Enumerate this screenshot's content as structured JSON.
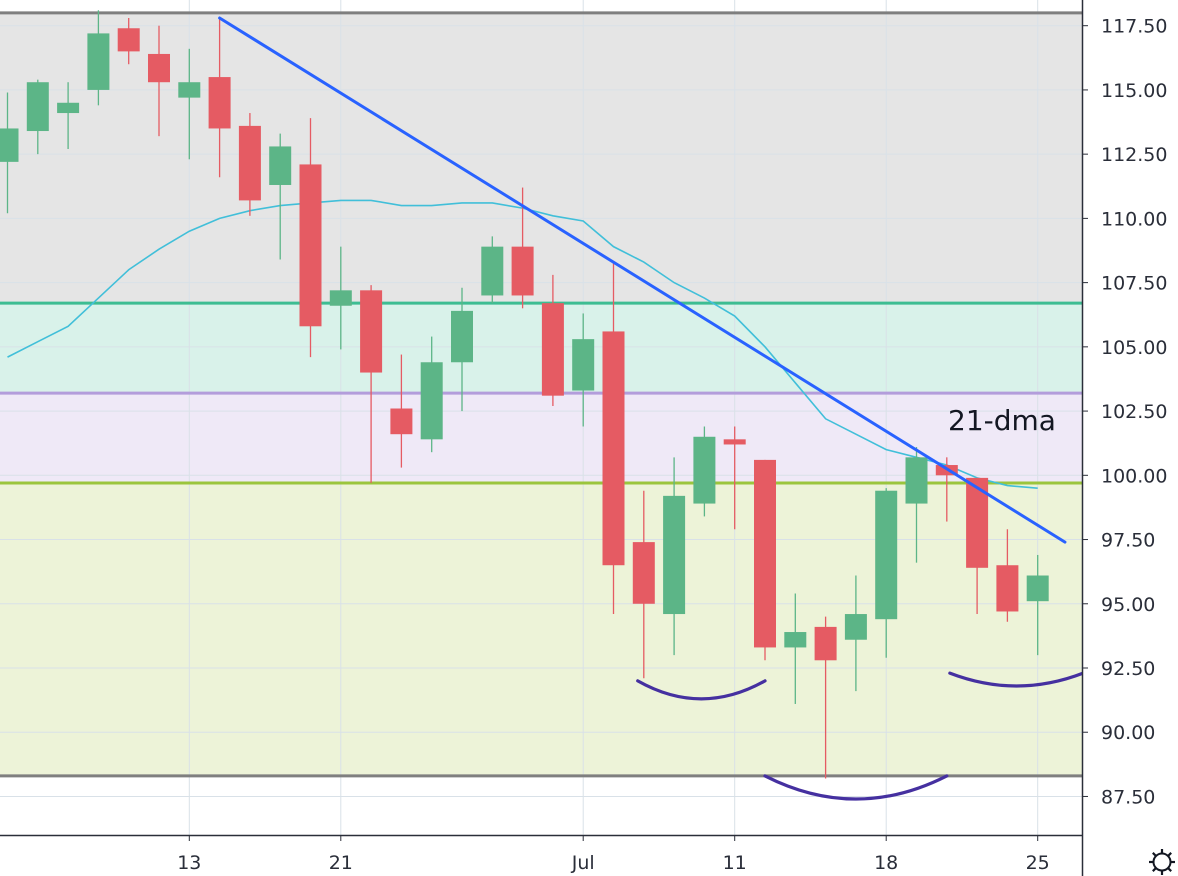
{
  "chart_data": {
    "type": "candlestick",
    "title": "",
    "xlabel": "",
    "ylabel": "",
    "ylim": [
      86.0,
      118.5
    ],
    "grid": true,
    "x_ticks": [
      "13",
      "21",
      "Jul",
      "11",
      "18",
      "25"
    ],
    "y_ticks": [
      "117.50",
      "115.00",
      "112.50",
      "110.00",
      "107.50",
      "105.00",
      "102.50",
      "100.00",
      "97.50",
      "95.00",
      "92.50",
      "90.00",
      "87.50"
    ],
    "candles": [
      {
        "open": 112.2,
        "high": 114.9,
        "low": 110.2,
        "close": 113.5
      },
      {
        "open": 113.4,
        "high": 115.4,
        "low": 112.5,
        "close": 115.3
      },
      {
        "open": 114.1,
        "high": 115.3,
        "low": 112.7,
        "close": 114.5
      },
      {
        "open": 115.0,
        "high": 118.1,
        "low": 114.4,
        "close": 117.2
      },
      {
        "open": 117.4,
        "high": 117.8,
        "low": 116.0,
        "close": 116.5
      },
      {
        "open": 116.4,
        "high": 117.5,
        "low": 113.2,
        "close": 115.3
      },
      {
        "open": 114.7,
        "high": 116.6,
        "low": 112.3,
        "close": 115.3
      },
      {
        "open": 115.5,
        "high": 117.8,
        "low": 111.6,
        "close": 113.5
      },
      {
        "open": 113.6,
        "high": 114.1,
        "low": 110.1,
        "close": 110.7
      },
      {
        "open": 111.3,
        "high": 113.3,
        "low": 108.4,
        "close": 112.8
      },
      {
        "open": 112.1,
        "high": 113.9,
        "low": 104.6,
        "close": 105.8
      },
      {
        "open": 106.6,
        "high": 108.9,
        "low": 104.9,
        "close": 107.2
      },
      {
        "open": 107.2,
        "high": 107.4,
        "low": 99.7,
        "close": 104.0
      },
      {
        "open": 102.6,
        "high": 104.7,
        "low": 100.3,
        "close": 101.6
      },
      {
        "open": 101.4,
        "high": 105.4,
        "low": 100.9,
        "close": 104.4
      },
      {
        "open": 104.4,
        "high": 107.3,
        "low": 102.5,
        "close": 106.4
      },
      {
        "open": 107.0,
        "high": 109.3,
        "low": 106.7,
        "close": 108.9
      },
      {
        "open": 108.9,
        "high": 111.2,
        "low": 106.5,
        "close": 107.0
      },
      {
        "open": 106.7,
        "high": 107.8,
        "low": 102.7,
        "close": 103.1
      },
      {
        "open": 103.3,
        "high": 106.3,
        "low": 101.9,
        "close": 105.3
      },
      {
        "open": 105.6,
        "high": 108.3,
        "low": 94.6,
        "close": 96.5
      },
      {
        "open": 97.4,
        "high": 99.4,
        "low": 92.1,
        "close": 95.0
      },
      {
        "open": 94.6,
        "high": 100.7,
        "low": 93.0,
        "close": 99.2
      },
      {
        "open": 98.9,
        "high": 101.9,
        "low": 98.4,
        "close": 101.5
      },
      {
        "open": 101.4,
        "high": 101.9,
        "low": 97.9,
        "close": 101.2
      },
      {
        "open": 100.6,
        "high": 100.6,
        "low": 92.8,
        "close": 93.3
      },
      {
        "open": 93.3,
        "high": 95.4,
        "low": 91.1,
        "close": 93.9
      },
      {
        "open": 94.1,
        "high": 94.5,
        "low": 88.2,
        "close": 92.8
      },
      {
        "open": 93.6,
        "high": 96.1,
        "low": 91.6,
        "close": 94.6
      },
      {
        "open": 94.4,
        "high": 99.5,
        "low": 92.9,
        "close": 99.4
      },
      {
        "open": 98.9,
        "high": 101.1,
        "low": 96.6,
        "close": 100.7
      },
      {
        "open": 100.4,
        "high": 100.7,
        "low": 98.2,
        "close": 100.0
      },
      {
        "open": 99.9,
        "high": 99.9,
        "low": 94.6,
        "close": 96.4
      },
      {
        "open": 96.5,
        "high": 97.9,
        "low": 94.3,
        "close": 94.7
      },
      {
        "open": 95.1,
        "high": 96.9,
        "low": 93.0,
        "close": 96.1
      }
    ],
    "moving_average": {
      "name": "21-dma",
      "values": [
        104.6,
        105.2,
        105.8,
        106.9,
        108.0,
        108.8,
        109.5,
        110.0,
        110.3,
        110.5,
        110.6,
        110.7,
        110.7,
        110.5,
        110.5,
        110.6,
        110.6,
        110.4,
        110.1,
        109.9,
        108.9,
        108.3,
        107.5,
        106.9,
        106.2,
        105.0,
        103.6,
        102.2,
        101.6,
        101.0,
        100.7,
        100.4,
        99.9,
        99.6,
        99.5
      ]
    },
    "horizontal_levels": [
      {
        "value": 118.0,
        "color": "#7f7f7f"
      },
      {
        "value": 106.7,
        "color": "#3dbd92"
      },
      {
        "value": 103.2,
        "color": "#b39ddb"
      },
      {
        "value": 99.7,
        "color": "#9bc53d"
      },
      {
        "value": 88.3,
        "color": "#7f7f7f"
      }
    ],
    "zones": [
      {
        "from": 106.7,
        "to": 118.0,
        "color": "#e5e5e5"
      },
      {
        "from": 103.2,
        "to": 106.7,
        "color": "#d9f2ea"
      },
      {
        "from": 99.7,
        "to": 103.2,
        "color": "#efe9f7"
      },
      {
        "from": 88.3,
        "to": 99.7,
        "color": "#edf3d8"
      }
    ],
    "trendline": {
      "from": {
        "index": 7,
        "value": 117.8
      },
      "to": {
        "index": 34.9,
        "value": 97.4
      },
      "color": "#2962ff"
    },
    "arcs": [
      {
        "from_index": 20.8,
        "to_index": 25.0,
        "depth_value": 91.3,
        "end_value": 92.0
      },
      {
        "from_index": 25.0,
        "to_index": 31.0,
        "depth_value": 87.4,
        "end_value": 88.3
      },
      {
        "from_index": 31.1,
        "to_index": 35.5,
        "depth_value": 91.8,
        "end_value": 92.3
      }
    ],
    "annotation": "21-dma",
    "colors": {
      "up": "#5cb587",
      "down": "#e55b63",
      "ma": "#41bfd9",
      "grid": "#d9e1e8",
      "arc": "#4530a0"
    }
  },
  "settings_icon": "gear-icon"
}
